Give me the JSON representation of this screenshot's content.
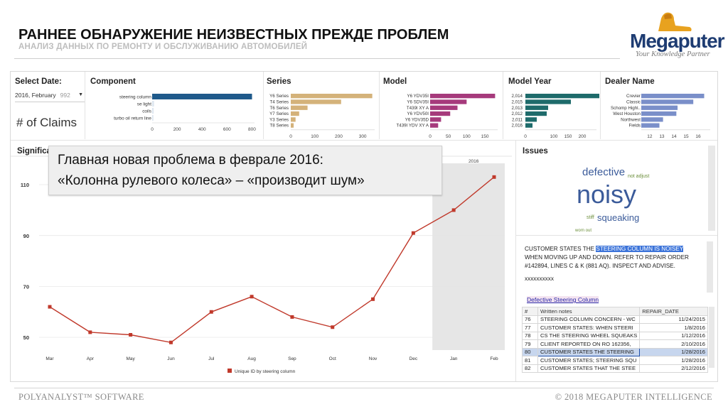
{
  "header": {
    "title": "РАННЕЕ ОБНАРУЖЕНИЕ НЕИЗВЕСТНЫХ ПРЕЖДЕ ПРОБЛЕМ",
    "subtitle": "АНАЛИЗ ДАННЫХ ПО РЕМОНТУ И ОБСЛУЖИВАНИЮ АВТОМОБИЛЕЙ"
  },
  "logo": {
    "word": "Megaputer",
    "slogan": "Your Knowledge Partner"
  },
  "select_date": {
    "title": "Select Date:",
    "value": "2016, February",
    "count": "992",
    "claims_label": "# of Claims"
  },
  "panels": {
    "component": {
      "title": "Component",
      "color": "#1f5a8b",
      "items": [
        {
          "label": "steering column",
          "value": 800
        },
        {
          "label": "se light",
          "value": 15
        },
        {
          "label": "coils",
          "value": 12
        },
        {
          "label": "turbo oil return line",
          "value": 10
        }
      ],
      "ticks": [
        "0",
        "200",
        "400",
        "600",
        "800"
      ],
      "max": 820
    },
    "series": {
      "title": "Series",
      "color": "#d4b27a",
      "items": [
        {
          "label": "Y6 Series",
          "value": 340
        },
        {
          "label": "T4 Series",
          "value": 210
        },
        {
          "label": "T6 Series",
          "value": 70
        },
        {
          "label": "Y7 Series",
          "value": 35
        },
        {
          "label": "Y3 Series",
          "value": 20
        },
        {
          "label": "T8 Series",
          "value": 12
        }
      ],
      "ticks": [
        "0",
        "100",
        "200",
        "300"
      ],
      "max": 350
    },
    "model": {
      "title": "Model",
      "color": "#a63a7c",
      "items": [
        {
          "label": "Y6 YDV35I",
          "value": 178
        },
        {
          "label": "Y6 SDV35I",
          "value": 100
        },
        {
          "label": "T439I XY A",
          "value": 75
        },
        {
          "label": "Y6 YDV50I",
          "value": 55
        },
        {
          "label": "Y6 YDV35D",
          "value": 30
        },
        {
          "label": "T439I YDV XY A",
          "value": 22
        }
      ],
      "ticks": [
        "0",
        "50",
        "100",
        "150"
      ],
      "max": 185
    },
    "model_year": {
      "title": "Model Year",
      "color": "#1e6b6b",
      "items": [
        {
          "label": "2,014",
          "value": 260
        },
        {
          "label": "2,015",
          "value": 160
        },
        {
          "label": "2,013",
          "value": 80
        },
        {
          "label": "2,012",
          "value": 75
        },
        {
          "label": "2,011",
          "value": 40
        },
        {
          "label": "2,016",
          "value": 25
        }
      ],
      "ticks": [
        "0",
        "100",
        "150",
        "200"
      ],
      "tick_vals": [
        0,
        100,
        150,
        200
      ],
      "max": 250
    },
    "dealer": {
      "title": "Dealer Name",
      "color": "#7a8fc9",
      "items": [
        {
          "label": "Crevier",
          "value": 16.5
        },
        {
          "label": "Classic",
          "value": 15.6
        },
        {
          "label": "Schomp Highl..",
          "value": 14.3
        },
        {
          "label": "West Houston",
          "value": 14.2
        },
        {
          "label": "Northwest",
          "value": 13.1
        },
        {
          "label": "Fields",
          "value": 12.8
        }
      ],
      "ticks": [
        "12",
        "13",
        "14",
        "15",
        "16"
      ],
      "tick_vals": [
        12,
        13,
        14,
        15,
        16
      ],
      "min": 11.3,
      "max": 17
    }
  },
  "significance": {
    "title": "Significa"
  },
  "callout": {
    "line1": "Главная новая проблема в феврале 2016:",
    "line2": "«Колонна рулевого колеса» – «производит шум»"
  },
  "chart_data": {
    "type": "line",
    "categories": [
      "Mar",
      "Apr",
      "May",
      "Jun",
      "Jul",
      "Aug",
      "Sep",
      "Oct",
      "Nov",
      "Dec",
      "Jan",
      "Feb"
    ],
    "series": [
      {
        "name": "Unique ID by steering column",
        "values": [
          62,
          52,
          51,
          48,
          60,
          66,
          58,
          54,
          65,
          91,
          100,
          113
        ]
      }
    ],
    "ylim": [
      45,
      117
    ],
    "yticks": [
      50,
      70,
      90,
      110
    ],
    "highlight_label": "2016",
    "color": "#c0392b"
  },
  "issues": {
    "title": "Issues",
    "words": [
      {
        "text": "defective",
        "size": 15
      },
      {
        "text": "not adjust",
        "size": 7
      },
      {
        "text": "noisy",
        "size": 36
      },
      {
        "text": "stiff",
        "size": 7
      },
      {
        "text": "squeaking",
        "size": 13
      },
      {
        "text": "worn out",
        "size": 6
      }
    ],
    "comment_pre": "CUSTOMER STATES THE ",
    "comment_hl": "STEERING COLUMN IS NOISEY",
    "comment_post": " WHEN MOVING UP AND DOWN. REFER TO REPAIR ORDER #142894, LINES C & K (881 AQ). INSPECT AND ADVISE.",
    "stars": "xxxxxxxxxx",
    "link": "Defective Steering Column",
    "table": {
      "headers": [
        "#",
        "Written notes",
        "REPAIR_DATE"
      ],
      "rows": [
        [
          "76",
          "STEERING COLUMN CONCERN - WC",
          "11/24/2015"
        ],
        [
          "77",
          "CUSTOMER STATES: WHEN STEERI",
          "1/8/2016"
        ],
        [
          "78",
          "CS THE STEERING WHEEL SQUEAKS",
          "1/12/2016"
        ],
        [
          "79",
          "CLIENT REPORTED ON RO 162356,",
          "2/10/2016"
        ],
        [
          "80",
          "CUSTOMER STATES THE STEERING",
          "1/28/2016"
        ],
        [
          "81",
          "CUSTOMER STATES; STEERING SQU",
          "1/28/2016"
        ],
        [
          "82",
          "CUSTOMER STATES THAT THE STEE",
          "2/12/2016"
        ]
      ],
      "selected_index": 4
    }
  },
  "footer": {
    "left": "POLYANALYST™ SOFTWARE",
    "right": "© 2018 MEGAPUTER INTELLIGENCE"
  }
}
